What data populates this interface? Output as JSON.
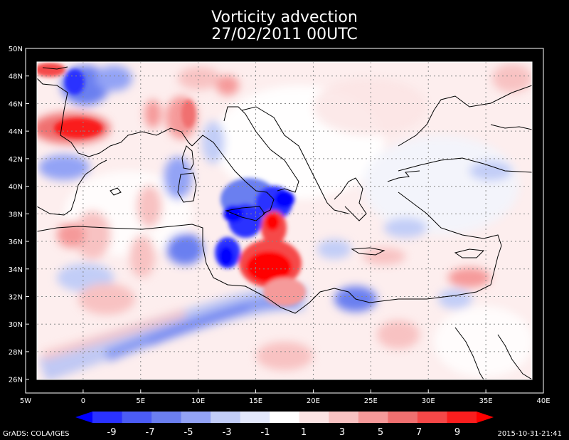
{
  "title": "Vorticity advection",
  "subtitle": "27/02/2011 00UTC",
  "map": {
    "lat_ticks": [
      "50N",
      "48N",
      "46N",
      "44N",
      "42N",
      "40N",
      "38N",
      "36N",
      "34N",
      "32N",
      "30N",
      "28N",
      "26N"
    ],
    "lon_ticks": [
      "5W",
      "0",
      "5E",
      "10E",
      "15E",
      "20E",
      "25E",
      "30E",
      "35E",
      "40E"
    ],
    "lon_range": [
      -5,
      40
    ],
    "lat_range": [
      25,
      50
    ],
    "field_extent": {
      "lon": [
        -4,
        39
      ],
      "lat": [
        26,
        49
      ]
    },
    "background": "#000000",
    "plot_background": "#ffffff",
    "grid": true
  },
  "colorbar": {
    "labels": [
      "-9",
      "-7",
      "-5",
      "-3",
      "-1",
      "1",
      "3",
      "5",
      "7",
      "9"
    ],
    "colors": [
      "#0000ff",
      "#2a32ff",
      "#4b5cf5",
      "#6b7ff0",
      "#93a3f5",
      "#c2cdf7",
      "#e3e8fb",
      "#ffffff",
      "#fbe3e3",
      "#f8c2c2",
      "#f59a9a",
      "#f07070",
      "#f54848",
      "#fa1e1e",
      "#ff0000"
    ]
  },
  "features": [
    {
      "name": "blue-maximum-ionian",
      "lon": 15.5,
      "lat": 38.0
    },
    {
      "name": "red-maximum-libya",
      "lon": 16.2,
      "lat": 33.8
    },
    {
      "name": "blue-band-north-africa",
      "lon": 12,
      "lat": 31
    }
  ],
  "credits": {
    "left": "GrADS: COLA/IGES",
    "right": "2015-10-31-21:41"
  }
}
